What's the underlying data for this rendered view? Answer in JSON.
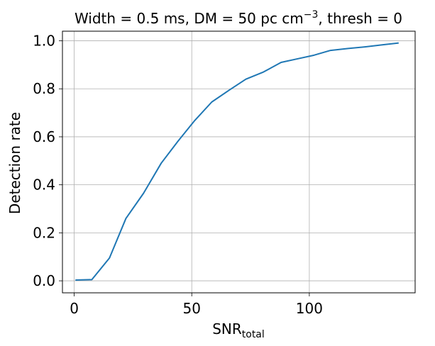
{
  "chart_data": {
    "type": "line",
    "title": {
      "prefix": "Width = 0.5 ms, DM = 50 pc cm",
      "superscript": "−3",
      "suffix": ", thresh = 0"
    },
    "xlabel": {
      "main": "SNR",
      "subscript": "total"
    },
    "ylabel": "Detection rate",
    "xlim": [
      -5,
      145
    ],
    "ylim": [
      -0.05,
      1.04
    ],
    "xticks": [
      0,
      50,
      100
    ],
    "xtick_labels": [
      "0",
      "50",
      "100"
    ],
    "yticks": [
      0.0,
      0.2,
      0.4,
      0.6,
      0.8,
      1.0
    ],
    "ytick_labels": [
      "0.0",
      "0.2",
      "0.4",
      "0.6",
      "0.8",
      "1.0"
    ],
    "grid": true,
    "series": [
      {
        "color": "#1f77b4",
        "x": [
          0.5,
          7.5,
          15,
          22,
          29.5,
          37,
          44,
          51,
          58.5,
          66,
          73,
          80.5,
          88,
          95,
          102,
          109,
          116.5,
          124,
          131,
          138
        ],
        "y": [
          0.003,
          0.005,
          0.095,
          0.26,
          0.365,
          0.49,
          0.58,
          0.665,
          0.745,
          0.795,
          0.84,
          0.87,
          0.91,
          0.925,
          0.94,
          0.96,
          0.968,
          0.975,
          0.983,
          0.991
        ]
      }
    ]
  }
}
